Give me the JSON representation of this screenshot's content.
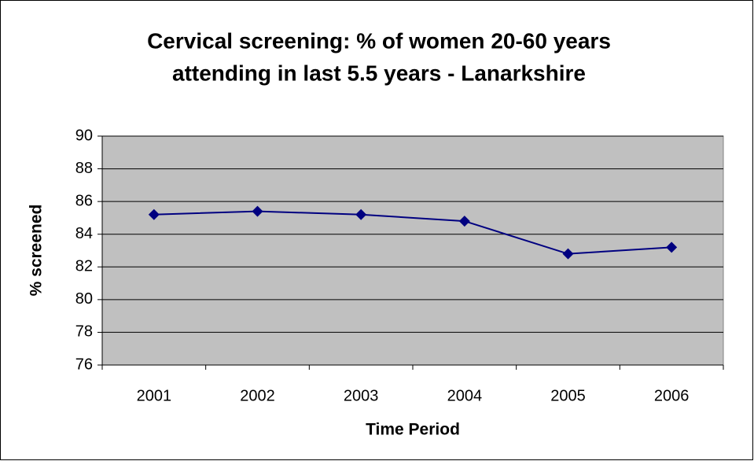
{
  "chart_data": {
    "type": "line",
    "title": [
      "Cervical screening: % of women 20-60 years",
      "attending in last 5.5 years - Lanarkshire"
    ],
    "xlabel": "Time Period",
    "ylabel": "% screened",
    "categories": [
      "2001",
      "2002",
      "2003",
      "2004",
      "2005",
      "2006"
    ],
    "series": [
      {
        "name": "% screened",
        "color": "#000080",
        "values": [
          85.2,
          85.4,
          85.2,
          84.8,
          82.8,
          83.2
        ]
      }
    ],
    "ylim": [
      76,
      90
    ],
    "yticks": [
      76,
      78,
      80,
      82,
      84,
      86,
      88,
      90
    ],
    "grid": true
  }
}
